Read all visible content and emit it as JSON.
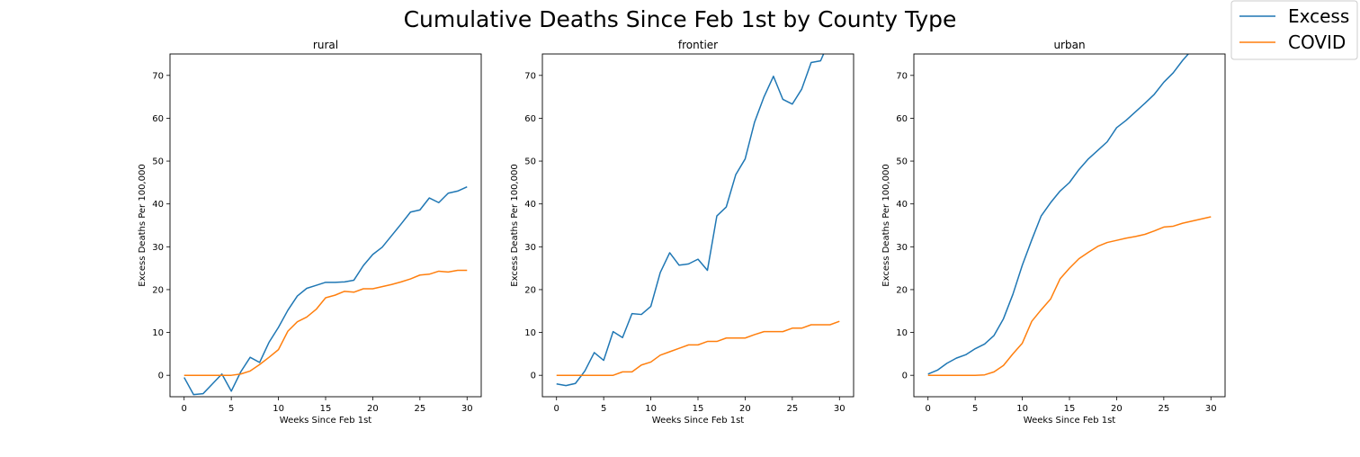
{
  "figure": {
    "title": "Cumulative Deaths Since Feb 1st by County Type"
  },
  "legend": {
    "placement": "top-right",
    "entries": [
      {
        "name": "Excess",
        "color": "#1f77b4"
      },
      {
        "name": "COVID",
        "color": "#ff7f0e"
      }
    ]
  },
  "chart_data": [
    {
      "type": "line",
      "title": "rural",
      "xlabel": "Weeks Since Feb 1st",
      "ylabel": "Excess Deaths Per 100,000",
      "xlim": [
        -1.5,
        31.5
      ],
      "ylim": [
        -5,
        75
      ],
      "xticks": [
        0,
        5,
        10,
        15,
        20,
        25,
        30
      ],
      "yticks": [
        0,
        10,
        20,
        30,
        40,
        50,
        60,
        70
      ],
      "grid": false,
      "x": [
        0,
        1,
        2,
        3,
        4,
        5,
        6,
        7,
        8,
        9,
        10,
        11,
        12,
        13,
        14,
        15,
        16,
        17,
        18,
        19,
        20,
        21,
        22,
        23,
        24,
        25,
        26,
        27,
        28,
        29,
        30
      ],
      "series": [
        {
          "name": "Excess",
          "color": "#1f77b4",
          "values": [
            -0.5,
            -4.5,
            -4.3,
            -2,
            0.3,
            -3.7,
            0.8,
            4.2,
            3,
            7.7,
            11.2,
            15.2,
            18.5,
            20.3,
            21,
            21.7,
            21.7,
            21.8,
            22.2,
            25.6,
            28.2,
            29.9,
            32.6,
            35.3,
            38.1,
            38.6,
            41.4,
            40.3,
            42.5,
            43,
            44
          ]
        },
        {
          "name": "COVID",
          "color": "#ff7f0e",
          "values": [
            0,
            0,
            0,
            0,
            0,
            0,
            0.3,
            1,
            2.5,
            4.2,
            6,
            10.3,
            12.5,
            13.6,
            15.4,
            18.1,
            18.7,
            19.6,
            19.4,
            20.2,
            20.2,
            20.7,
            21.2,
            21.8,
            22.5,
            23.4,
            23.6,
            24.3,
            24.1,
            24.5,
            24.5
          ]
        }
      ]
    },
    {
      "type": "line",
      "title": "frontier",
      "xlabel": "Weeks Since Feb 1st",
      "ylabel": "Excess Deaths Per 100,000",
      "xlim": [
        -1.5,
        31.5
      ],
      "ylim": [
        -5,
        75
      ],
      "xticks": [
        0,
        5,
        10,
        15,
        20,
        25,
        30
      ],
      "yticks": [
        0,
        10,
        20,
        30,
        40,
        50,
        60,
        70
      ],
      "grid": false,
      "x": [
        0,
        1,
        2,
        3,
        4,
        5,
        6,
        7,
        8,
        9,
        10,
        11,
        12,
        13,
        14,
        15,
        16,
        17,
        18,
        19,
        20,
        21,
        22,
        23,
        24,
        25,
        26,
        27,
        28,
        29,
        30
      ],
      "series": [
        {
          "name": "Excess",
          "color": "#1f77b4",
          "values": [
            -2,
            -2.4,
            -1.9,
            1,
            5.3,
            3.5,
            10.2,
            8.8,
            14.4,
            14.2,
            16.1,
            24,
            28.6,
            25.7,
            26,
            27.1,
            24.5,
            37.2,
            39.3,
            46.8,
            50.5,
            59.1,
            65,
            69.8,
            64.4,
            63.3,
            66.8,
            73,
            73.4,
            78.5,
            82
          ]
        },
        {
          "name": "COVID",
          "color": "#ff7f0e",
          "values": [
            0,
            0,
            0,
            0,
            0,
            0,
            0,
            0.8,
            0.8,
            2.4,
            3.1,
            4.7,
            5.5,
            6.3,
            7.1,
            7.1,
            7.9,
            7.9,
            8.7,
            8.7,
            8.7,
            9.5,
            10.2,
            10.2,
            10.2,
            11,
            11,
            11.8,
            11.8,
            11.8,
            12.6
          ]
        }
      ]
    },
    {
      "type": "line",
      "title": "urban",
      "xlabel": "Weeks Since Feb 1st",
      "ylabel": "Excess Deaths Per 100,000",
      "xlim": [
        -1.5,
        31.5
      ],
      "ylim": [
        -5,
        75
      ],
      "xticks": [
        0,
        5,
        10,
        15,
        20,
        25,
        30
      ],
      "yticks": [
        0,
        10,
        20,
        30,
        40,
        50,
        60,
        70
      ],
      "grid": false,
      "x": [
        0,
        1,
        2,
        3,
        4,
        5,
        6,
        7,
        8,
        9,
        10,
        11,
        12,
        13,
        14,
        15,
        16,
        17,
        18,
        19,
        20,
        21,
        22,
        23,
        24,
        25,
        26,
        27,
        28,
        29,
        30
      ],
      "series": [
        {
          "name": "Excess",
          "color": "#1f77b4",
          "values": [
            0.3,
            1.2,
            2.8,
            4,
            4.8,
            6.2,
            7.3,
            9.3,
            13.2,
            18.9,
            25.7,
            31.6,
            37.2,
            40.3,
            43,
            45,
            48,
            50.5,
            52.5,
            54.5,
            57.8,
            59.5,
            61.5,
            63.5,
            65.6,
            68.4,
            70.6,
            73.5,
            76,
            78.5,
            81
          ]
        },
        {
          "name": "COVID",
          "color": "#ff7f0e",
          "values": [
            0,
            0,
            0,
            0,
            0,
            0,
            0.1,
            0.8,
            2.3,
            5,
            7.5,
            12.6,
            15.3,
            17.8,
            22.5,
            25,
            27.2,
            28.7,
            30.1,
            31,
            31.5,
            32,
            32.4,
            32.9,
            33.7,
            34.6,
            34.8,
            35.5,
            36,
            36.5,
            37
          ]
        }
      ]
    }
  ]
}
